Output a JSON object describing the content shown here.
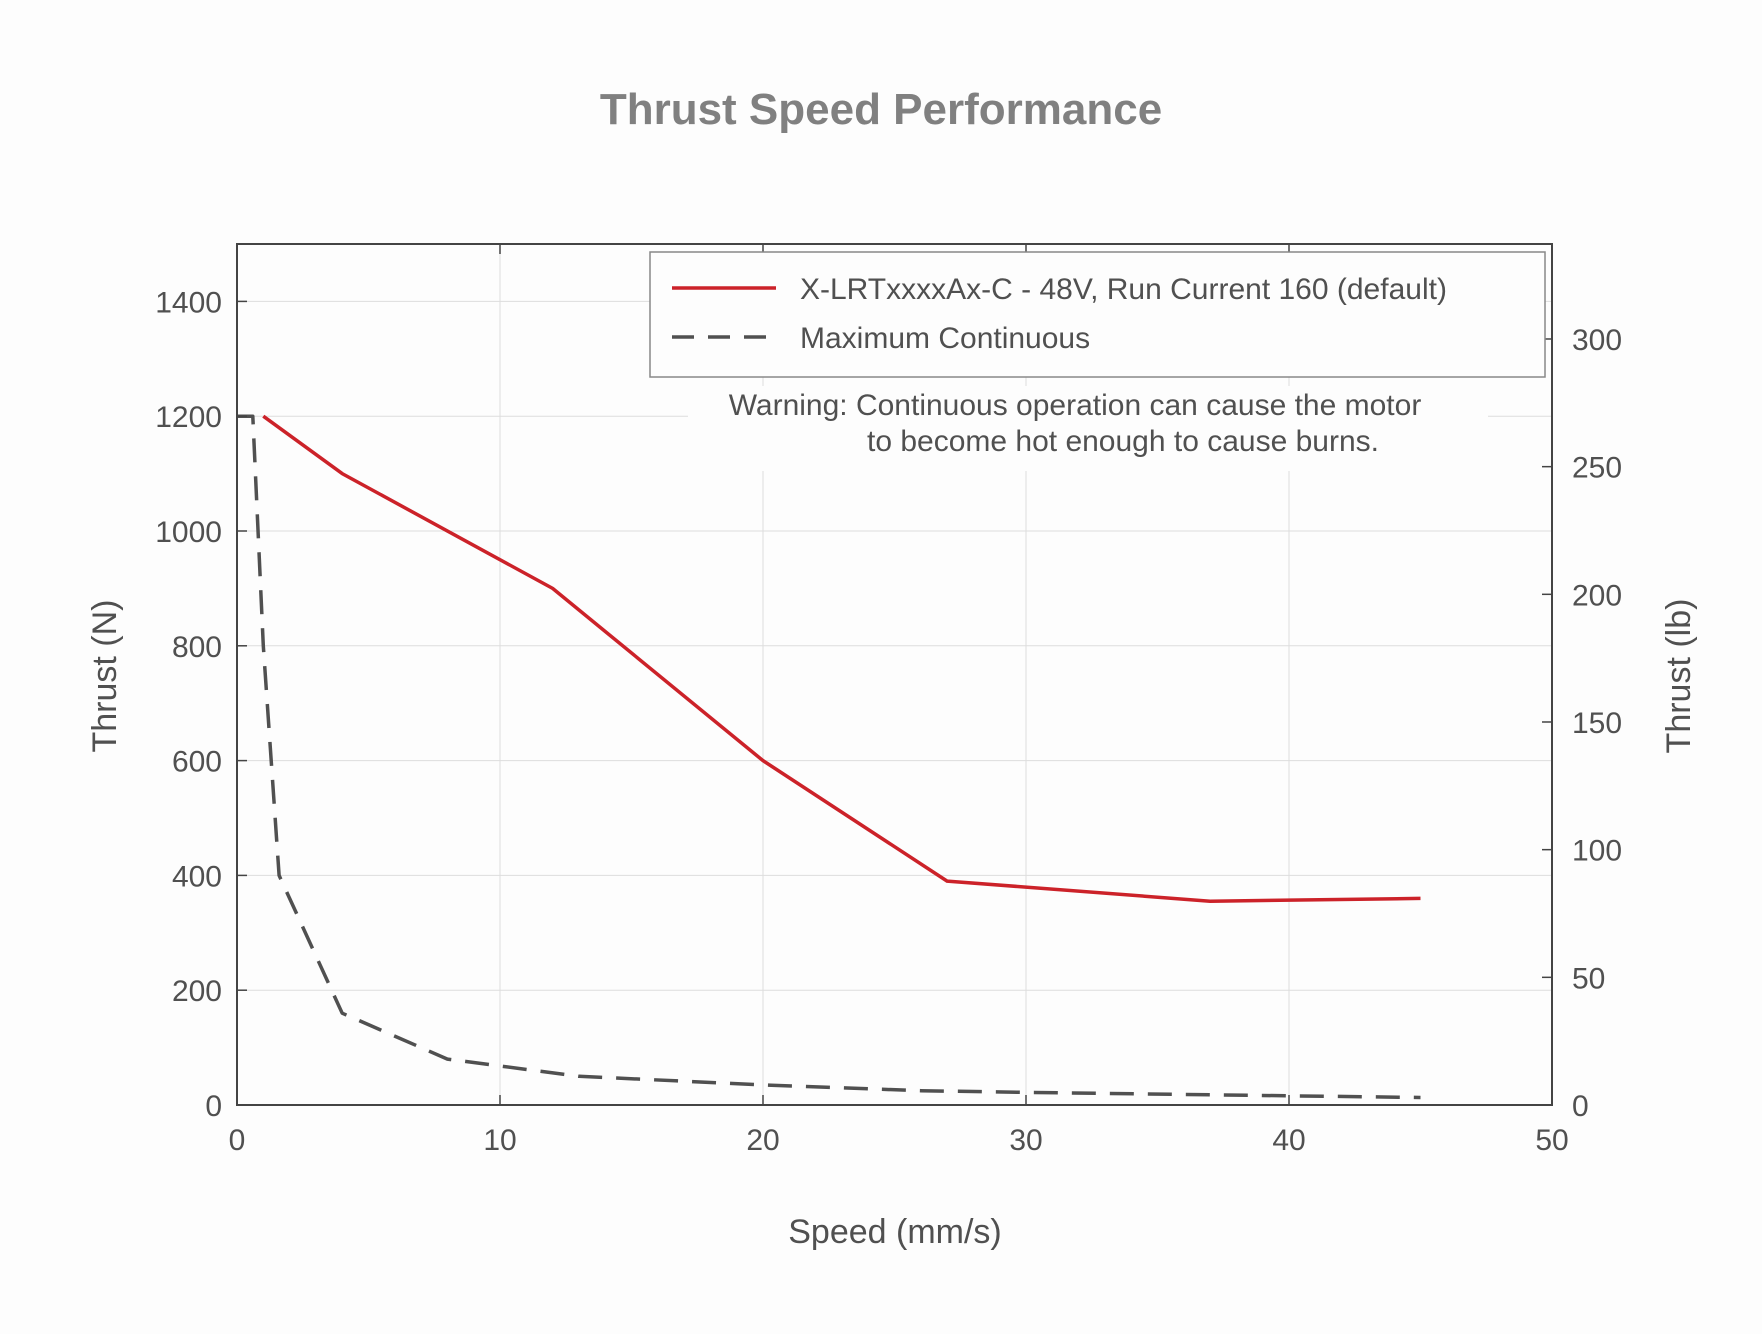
{
  "chart_data": {
    "type": "line",
    "title": "Thrust Speed Performance",
    "xlabel": "Speed (mm/s)",
    "ylabel": "Thrust (N)",
    "ylabel_right": "Thrust (lb)",
    "xlim": [
      0,
      50
    ],
    "ylim": [
      0,
      1500
    ],
    "ylim_right": [
      0,
      337.2
    ],
    "xticks": [
      0,
      10,
      20,
      30,
      40,
      50
    ],
    "yticks": [
      0,
      200,
      400,
      600,
      800,
      1000,
      1200,
      1400
    ],
    "yticks_right": [
      0,
      50,
      100,
      150,
      200,
      250,
      300
    ],
    "grid": true,
    "legend_position": "top-right",
    "series": [
      {
        "name": "X-LRTxxxxAx-C - 48V, Run Current 160 (default)",
        "color": "#cc2229",
        "style": "solid",
        "x": [
          1,
          4,
          12,
          20,
          27,
          37,
          45
        ],
        "y": [
          1200,
          1100,
          900,
          600,
          390,
          355,
          360
        ]
      },
      {
        "name": "Maximum Continuous",
        "color": "#505050",
        "style": "dashed",
        "x": [
          0,
          0.6,
          1,
          1.6,
          4,
          8,
          13,
          20,
          26,
          30,
          40,
          45
        ],
        "y": [
          1200,
          1200,
          800,
          400,
          160,
          80,
          50,
          35,
          25,
          22,
          16,
          13
        ]
      }
    ],
    "annotation": {
      "lines": [
        "Warning: Continuous operation can cause the motor",
        "to become hot enough to cause burns."
      ]
    }
  }
}
